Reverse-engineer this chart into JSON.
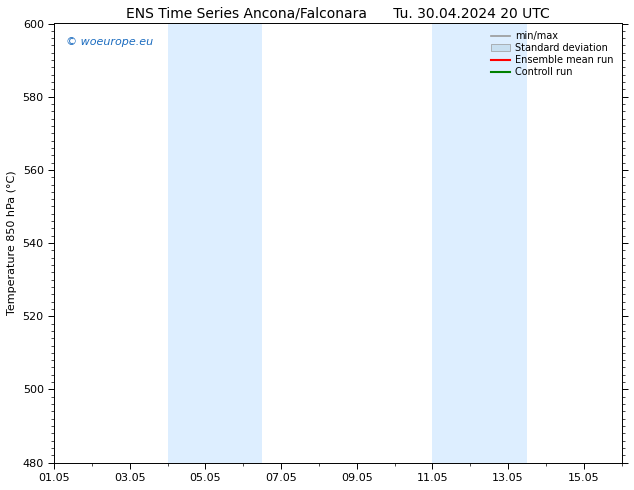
{
  "title_left": "ENS Time Series Ancona/Falconara",
  "title_right": "Tu. 30.04.2024 20 UTC",
  "ylabel": "Temperature 850 hPa (°C)",
  "ylim": [
    480,
    600
  ],
  "yticks": [
    480,
    500,
    520,
    540,
    560,
    580,
    600
  ],
  "xtick_labels": [
    "01.05",
    "03.05",
    "05.05",
    "07.05",
    "09.05",
    "11.05",
    "13.05",
    "15.05"
  ],
  "xtick_positions_days": [
    0,
    2,
    4,
    6,
    8,
    10,
    12,
    14
  ],
  "xlim": [
    0,
    15
  ],
  "shaded_bands": [
    {
      "x_start_day": 3.0,
      "x_end_day": 5.5
    },
    {
      "x_start_day": 10.0,
      "x_end_day": 12.5
    }
  ],
  "shaded_color": "#ddeeff",
  "background_color": "#ffffff",
  "watermark_text": "© woeurope.eu",
  "watermark_color": "#1a6bbf",
  "legend_items": [
    {
      "label": "min/max",
      "color": "#999999",
      "lw": 1.2,
      "style": "solid"
    },
    {
      "label": "Standard deviation",
      "color": "#c8dff0",
      "lw": 8,
      "style": "solid"
    },
    {
      "label": "Ensemble mean run",
      "color": "#ff0000",
      "lw": 1.5,
      "style": "solid"
    },
    {
      "label": "Controll run",
      "color": "#008000",
      "lw": 1.5,
      "style": "solid"
    }
  ],
  "title_fontsize": 10,
  "axis_fontsize": 8,
  "tick_fontsize": 8
}
